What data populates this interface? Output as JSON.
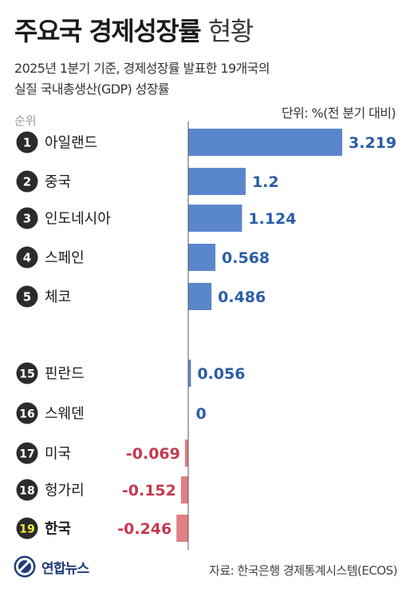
{
  "header": {
    "title_bold": "주요국 경제성장률",
    "title_light": "현황",
    "subtitle_line1": "2025년 1분기 기준, 경제성장률 발표한 19개국의",
    "subtitle_line2": "실질 국내총생산(GDP) 성장률",
    "unit": "단위: %(전 분기 대비)",
    "rank_header": "순위"
  },
  "colors": {
    "positive_bar": "#5a86cc",
    "positive_label": "#2a5ea8",
    "negative_bar": "#e07f84",
    "negative_label": "#c33a4f",
    "badge": "#2b2b2b",
    "badge_highlight": "#f2ea3c"
  },
  "chart_data": {
    "type": "bar",
    "orientation": "horizontal",
    "categories": [
      "아일랜드",
      "중국",
      "인도네시아",
      "스페인",
      "체코",
      "핀란드",
      "스웨덴",
      "미국",
      "헝가리",
      "한국"
    ],
    "ranks": [
      "1",
      "2",
      "3",
      "4",
      "5",
      "15",
      "16",
      "17",
      "18",
      "19"
    ],
    "values": [
      3.219,
      1.2,
      1.124,
      0.568,
      0.486,
      0.056,
      0,
      -0.069,
      -0.152,
      -0.246
    ],
    "value_labels": [
      "3.219",
      "1.2",
      "1.124",
      "0.568",
      "0.486",
      "0.056",
      "0",
      "-0.069",
      "-0.152",
      "-0.246"
    ],
    "highlight": "한국",
    "grid": false
  },
  "footer": {
    "logo_text": "연합뉴스",
    "source": "자료: 한국은행 경제통계시스템(ECOS)"
  }
}
